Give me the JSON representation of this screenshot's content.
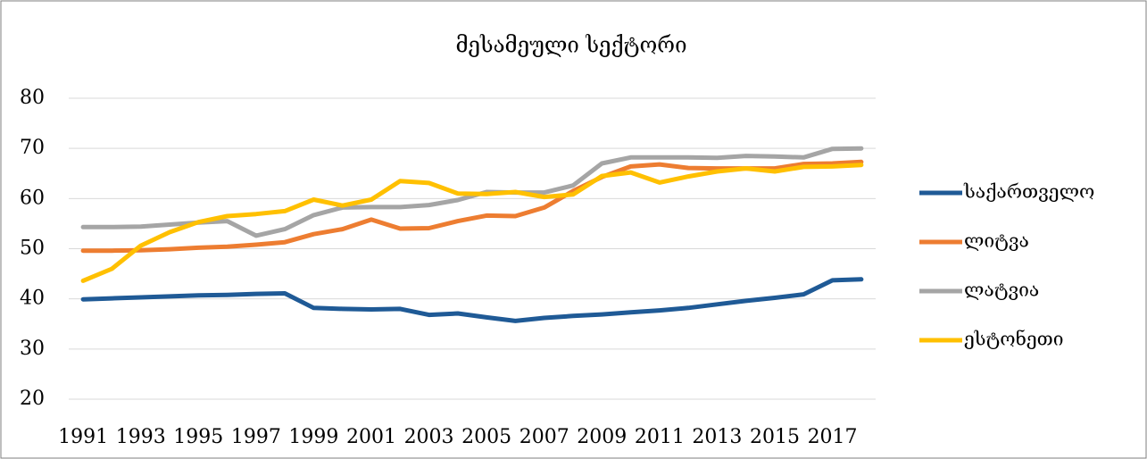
{
  "chart_data": {
    "type": "line",
    "title": "მესამეული სექტორი",
    "categories": [
      "1991",
      null,
      "1993",
      null,
      "1995",
      null,
      "1997",
      null,
      "1999",
      null,
      "2001",
      null,
      "2003",
      null,
      "2005",
      null,
      "2007",
      null,
      "2009",
      null,
      "2011",
      null,
      "2013",
      null,
      "2015",
      null,
      "2017",
      null
    ],
    "series": [
      {
        "name": "საქართველო",
        "color": "#1f5a96",
        "values": [
          39.9,
          40.1,
          40.3,
          40.5,
          40.7,
          40.8,
          41.0,
          41.1,
          38.2,
          38.0,
          37.9,
          38.0,
          36.8,
          37.1,
          36.3,
          35.6,
          36.2,
          36.6,
          36.9,
          37.3,
          37.7,
          38.2,
          38.9,
          39.6,
          40.2,
          40.9,
          43.7,
          43.9
        ]
      },
      {
        "name": "ლიტვა",
        "color": "#ed7d31",
        "values": [
          49.6,
          49.6,
          49.7,
          49.9,
          50.2,
          50.4,
          50.8,
          51.3,
          52.9,
          53.9,
          55.8,
          54.0,
          54.1,
          55.5,
          56.6,
          56.5,
          58.2,
          61.5,
          64.3,
          66.4,
          66.8,
          66.1,
          66.0,
          66.0,
          66.0,
          66.9,
          67.0,
          67.3
        ]
      },
      {
        "name": "ლატვია",
        "color": "#a5a5a5",
        "values": [
          54.3,
          54.3,
          54.4,
          54.8,
          55.2,
          55.5,
          52.6,
          53.9,
          56.7,
          58.2,
          58.3,
          58.3,
          58.7,
          59.7,
          61.3,
          61.2,
          61.2,
          62.6,
          67.0,
          68.2,
          68.2,
          68.2,
          68.1,
          68.5,
          68.4,
          68.2,
          69.9,
          70.0
        ]
      },
      {
        "name": "ესტონეთი",
        "color": "#ffc000",
        "values": [
          43.6,
          46.0,
          50.6,
          53.3,
          55.3,
          56.5,
          56.9,
          57.5,
          59.8,
          58.6,
          59.8,
          63.5,
          63.1,
          61.0,
          60.9,
          61.3,
          60.3,
          60.8,
          64.5,
          65.2,
          63.2,
          64.4,
          65.4,
          66.0,
          65.4,
          66.3,
          66.4,
          66.7
        ]
      }
    ],
    "ylim": [
      20,
      80
    ],
    "yticks": [
      20,
      30,
      40,
      50,
      60,
      70,
      80
    ],
    "grid": true,
    "legend": "right"
  }
}
